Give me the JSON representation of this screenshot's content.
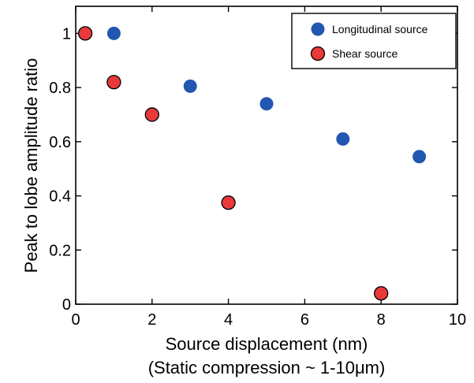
{
  "chart_data": {
    "type": "scatter",
    "xlabel": "Source displacement (nm)",
    "xlabel_sub": "(Static compression ~ 1-10μm)",
    "ylabel": "Peak to lobe amplitude ratio",
    "xlim": [
      0,
      10
    ],
    "ylim": [
      0,
      1.1
    ],
    "x_ticks": [
      0,
      2,
      4,
      6,
      8,
      10
    ],
    "x_tick_labels": [
      "0",
      "2",
      "4",
      "6",
      "8",
      "10"
    ],
    "y_ticks": [
      0,
      0.2,
      0.4,
      0.6,
      0.8,
      1
    ],
    "y_tick_labels": [
      "0",
      "0.2",
      "0.4",
      "0.6",
      "0.8",
      "1"
    ],
    "grid": false,
    "legend_position": "top-right",
    "series": [
      {
        "name": "Longitudinal source",
        "color": "#2157b0",
        "marker": "circle",
        "x": [
          1,
          3,
          5,
          7,
          9
        ],
        "y": [
          1.0,
          0.805,
          0.74,
          0.61,
          0.545
        ]
      },
      {
        "name": "Shear source",
        "color": "#e8393b",
        "marker": "circle-outlined",
        "x": [
          0.25,
          1,
          2,
          4,
          8
        ],
        "y": [
          1.0,
          0.82,
          0.7,
          0.375,
          0.04
        ]
      }
    ]
  }
}
